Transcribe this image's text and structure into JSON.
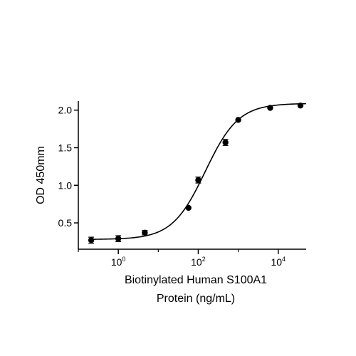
{
  "chart_data": {
    "type": "scatter",
    "xscale": "log",
    "xlim": [
      0.1,
      50000
    ],
    "ylim": [
      0.15,
      2.12
    ],
    "yticks": [
      {
        "value": 0.5,
        "label": "0.5"
      },
      {
        "value": 1.0,
        "label": "1.0"
      },
      {
        "value": 1.5,
        "label": "1.5"
      },
      {
        "value": 2.0,
        "label": "2.0"
      }
    ],
    "xticks": [
      {
        "value": 1,
        "base": "10",
        "exp": "0"
      },
      {
        "value": 100,
        "base": "10",
        "exp": "2"
      },
      {
        "value": 10000,
        "base": "10",
        "exp": "4"
      }
    ],
    "xlabel_lines": [
      "Biotinylated Human S100A1",
      "Protein (ng/mL)"
    ],
    "ylabel": "OD 450mm",
    "grid": false,
    "points": [
      {
        "x": 0.21,
        "y": 0.27,
        "err": 0.04
      },
      {
        "x": 1.0,
        "y": 0.29,
        "err": 0.04
      },
      {
        "x": 4.6,
        "y": 0.37,
        "err": 0.03
      },
      {
        "x": 57,
        "y": 0.7,
        "err": 0.0
      },
      {
        "x": 100,
        "y": 1.07,
        "err": 0.04
      },
      {
        "x": 480,
        "y": 1.57,
        "err": 0.04
      },
      {
        "x": 1000,
        "y": 1.87,
        "err": 0.0
      },
      {
        "x": 6300,
        "y": 2.03,
        "err": 0.0
      },
      {
        "x": 36000,
        "y": 2.06,
        "err": 0.0
      }
    ],
    "fit_curve": {
      "type": "4PL",
      "bottom": 0.28,
      "top": 2.09,
      "ec50": 150,
      "hill": 1.05
    }
  }
}
